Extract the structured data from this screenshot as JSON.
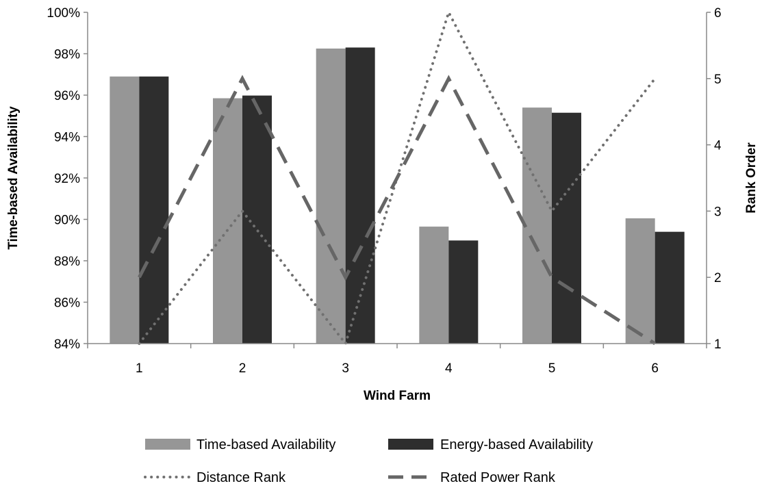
{
  "chart_data": {
    "type": "bar",
    "categories": [
      "1",
      "2",
      "3",
      "4",
      "5",
      "6"
    ],
    "xlabel": "Wind Farm",
    "ylabel": "Time-based Availability",
    "y2label": "Rank Order",
    "ylim": [
      0.84,
      1.0
    ],
    "y_ticks": [
      "84%",
      "86%",
      "88%",
      "90%",
      "92%",
      "94%",
      "96%",
      "98%",
      "100%"
    ],
    "y2lim": [
      1,
      6
    ],
    "y2_ticks": [
      "1",
      "2",
      "3",
      "4",
      "5",
      "6"
    ],
    "grid": false,
    "legend_position": "bottom",
    "series": [
      {
        "name": "Time-based Availability",
        "kind": "bar",
        "axis": "left",
        "color": "#969696",
        "values": [
          0.969,
          0.9585,
          0.9825,
          0.8965,
          0.954,
          0.9005
        ]
      },
      {
        "name": "Energy-based Availability",
        "kind": "bar",
        "axis": "left",
        "color": "#2e2e2e",
        "values": [
          0.969,
          0.9598,
          0.983,
          0.8898,
          0.9515,
          0.894
        ]
      },
      {
        "name": "Distance Rank",
        "kind": "line",
        "axis": "right",
        "style": "dotted",
        "color": "#707070",
        "values": [
          1,
          3,
          1,
          6,
          3,
          5
        ]
      },
      {
        "name": "Rated Power Rank",
        "kind": "line",
        "axis": "right",
        "style": "dashed",
        "color": "#666666",
        "values": [
          2,
          5,
          2,
          5,
          2,
          1
        ]
      }
    ]
  }
}
